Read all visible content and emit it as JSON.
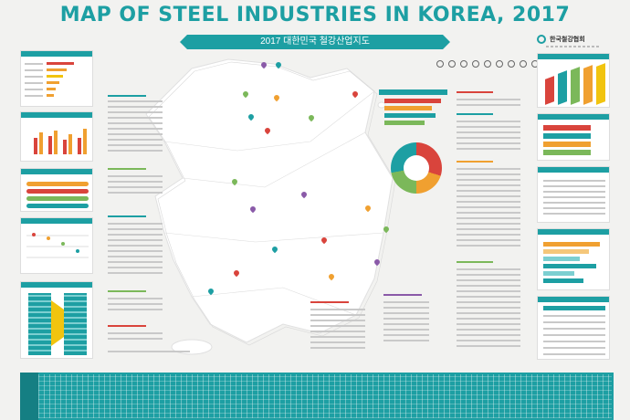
{
  "header": {
    "title": "MAP OF STEEL INDUSTRIES IN KOREA, 2017",
    "subtitle": "2017 대한민국 철강산업지도",
    "logo_text": "한국철강협회"
  },
  "colors": {
    "accent": "#1d9fa3",
    "red": "#d9443c",
    "orange": "#f0a030",
    "green": "#7bb85a",
    "purple": "#8a5aa8",
    "yellow": "#f1c40f"
  },
  "panels": {
    "left": [
      "panel-1",
      "panel-2",
      "panel-3",
      "panel-4",
      "panel-5"
    ],
    "right": [
      "panel-r1",
      "panel-r2",
      "panel-r3",
      "panel-r4",
      "panel-r5"
    ]
  }
}
